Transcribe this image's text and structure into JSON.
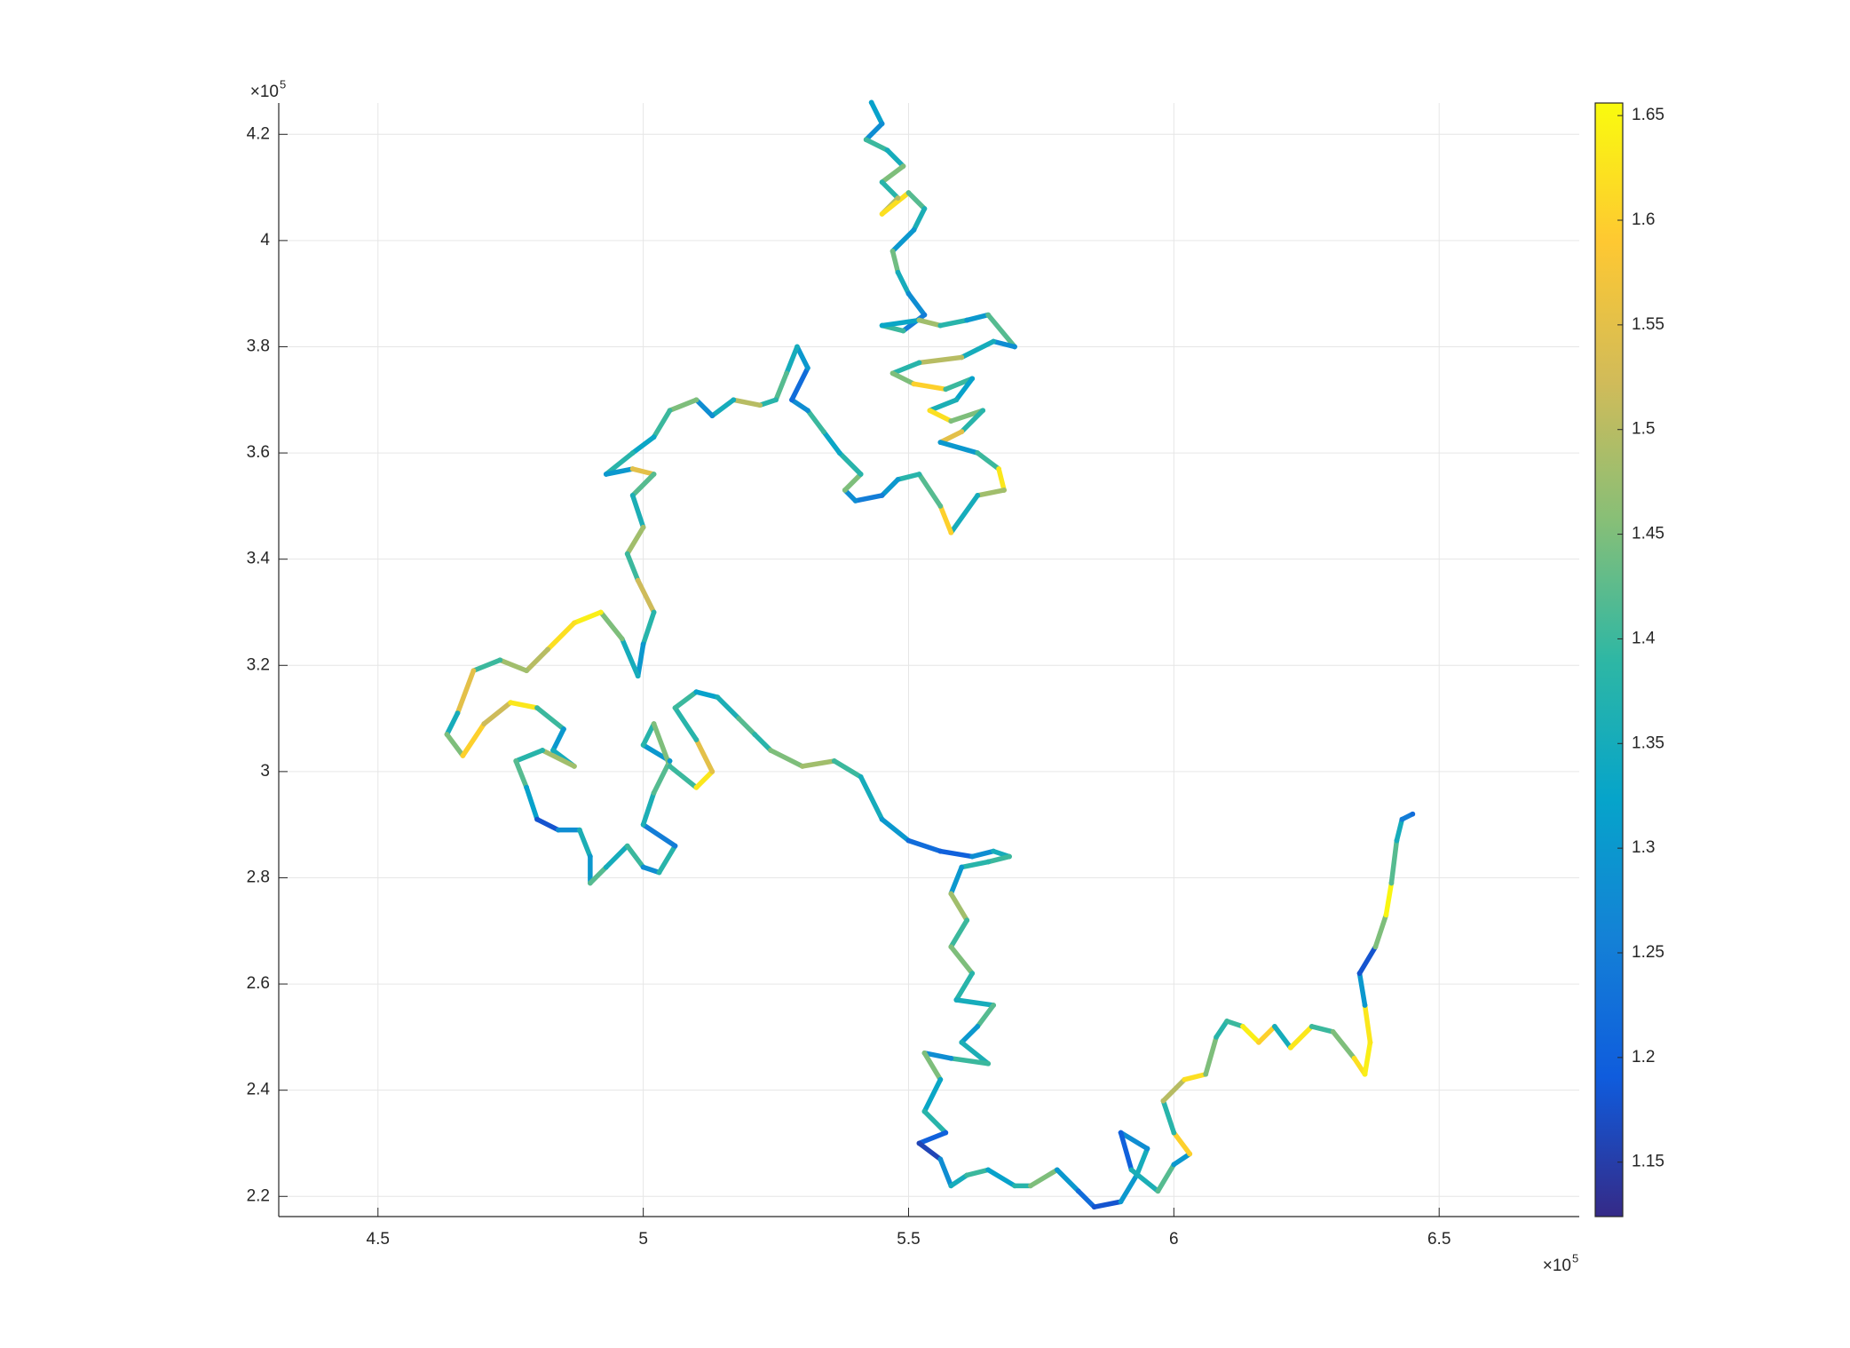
{
  "chart_data": {
    "type": "colored_line",
    "x": [
      543000,
      545000,
      542000,
      546000,
      549000,
      545000,
      548000,
      545000,
      550000,
      553000,
      551000,
      547000,
      548000,
      550000,
      553000,
      549000,
      545000,
      552000,
      556000,
      561000,
      565000,
      570000,
      566000,
      560000,
      552000,
      547000,
      551000,
      557000,
      562000,
      559000,
      554000,
      558000,
      564000,
      560000,
      556000,
      563000,
      567000,
      568000,
      563000,
      558000,
      556000,
      552000,
      548000,
      545000,
      540000,
      538000,
      541000,
      537000,
      534000,
      531000,
      528000,
      531000,
      529000,
      527000,
      525000,
      522000,
      517000,
      513000,
      510000,
      505000,
      502000,
      498000,
      493000,
      498000,
      502000,
      498000,
      500000,
      497000,
      499000,
      502000,
      500000,
      499000,
      496000,
      492000,
      487000,
      482000,
      478000,
      473000,
      468000,
      465000,
      463000,
      466000,
      470000,
      475000,
      480000,
      485000,
      483000,
      487000,
      481000,
      476000,
      478000,
      480000,
      484000,
      488000,
      490000,
      490000,
      493000,
      497000,
      500000,
      503000,
      506000,
      500000,
      502000,
      505000,
      500000,
      502000,
      505000,
      510000,
      513000,
      510000,
      506000,
      510000,
      514000,
      518000,
      521000,
      524000,
      530000,
      536000,
      541000,
      545000,
      550000,
      556000,
      562000,
      566000,
      569000,
      565000,
      560000,
      558000,
      561000,
      558000,
      562000,
      559000,
      566000,
      563000,
      560000,
      565000,
      558000,
      553000,
      556000,
      553000,
      557000,
      552000,
      556000,
      558000,
      561000,
      565000,
      570000,
      573000,
      578000,
      582000,
      585000,
      590000,
      593000,
      595000,
      590000,
      592000,
      597000,
      600000,
      603000,
      600000,
      598000,
      602000,
      606000,
      608000,
      610000,
      613000,
      616000,
      619000,
      622000,
      626000,
      630000,
      634000,
      636000,
      637000,
      636000,
      635000,
      638000,
      640000,
      641000,
      642000,
      643000,
      645000
    ],
    "y": [
      426000,
      422000,
      419000,
      417000,
      414000,
      411000,
      408000,
      405000,
      409000,
      406000,
      402000,
      398000,
      394000,
      390000,
      386000,
      383000,
      384000,
      385000,
      384000,
      385000,
      386000,
      380000,
      381000,
      378000,
      377000,
      375000,
      373000,
      372000,
      374000,
      370000,
      368000,
      366000,
      368000,
      364000,
      362000,
      360000,
      357000,
      353000,
      352000,
      345000,
      350000,
      356000,
      355000,
      352000,
      351000,
      353000,
      356000,
      360000,
      364000,
      368000,
      370000,
      376000,
      380000,
      375000,
      370000,
      369000,
      370000,
      367000,
      370000,
      368000,
      363000,
      360000,
      356000,
      357000,
      356000,
      352000,
      346000,
      341000,
      336000,
      330000,
      324000,
      318000,
      325000,
      330000,
      328000,
      323000,
      319000,
      321000,
      319000,
      311000,
      307000,
      303000,
      309000,
      313000,
      312000,
      308000,
      304000,
      301000,
      304000,
      302000,
      297000,
      291000,
      289000,
      289000,
      284000,
      279000,
      282000,
      286000,
      282000,
      281000,
      286000,
      290000,
      296000,
      302000,
      305000,
      309000,
      301000,
      297000,
      300000,
      306000,
      312000,
      315000,
      314000,
      310000,
      307000,
      304000,
      301000,
      302000,
      299000,
      291000,
      287000,
      285000,
      284000,
      285000,
      284000,
      283000,
      282000,
      277000,
      272000,
      267000,
      262000,
      257000,
      256000,
      252000,
      249000,
      245000,
      246000,
      247000,
      242000,
      236000,
      232000,
      230000,
      227000,
      222000,
      224000,
      225000,
      222000,
      222000,
      225000,
      221000,
      218000,
      219000,
      224000,
      229000,
      232000,
      225000,
      221000,
      226000,
      228000,
      232000,
      238000,
      242000,
      243000,
      250000,
      253000,
      252000,
      249000,
      252000,
      248000,
      252000,
      251000,
      246000,
      243000,
      249000,
      256000,
      262000,
      267000,
      273000,
      279000,
      287000,
      291000,
      292000
    ],
    "color_values": [
      1.32,
      1.28,
      1.4,
      1.35,
      1.45,
      1.38,
      1.5,
      1.62,
      1.42,
      1.36,
      1.3,
      1.44,
      1.35,
      1.28,
      1.25,
      1.4,
      1.33,
      1.48,
      1.38,
      1.3,
      1.42,
      1.28,
      1.35,
      1.5,
      1.38,
      1.45,
      1.6,
      1.4,
      1.32,
      1.36,
      1.62,
      1.45,
      1.38,
      1.55,
      1.3,
      1.4,
      1.63,
      1.48,
      1.35,
      1.6,
      1.42,
      1.38,
      1.3,
      1.25,
      1.28,
      1.45,
      1.38,
      1.33,
      1.4,
      1.28,
      1.22,
      1.3,
      1.35,
      1.42,
      1.38,
      1.5,
      1.35,
      1.28,
      1.45,
      1.4,
      1.33,
      1.38,
      1.3,
      1.55,
      1.42,
      1.36,
      1.48,
      1.4,
      1.52,
      1.38,
      1.3,
      1.35,
      1.45,
      1.64,
      1.62,
      1.5,
      1.48,
      1.4,
      1.55,
      1.35,
      1.45,
      1.6,
      1.52,
      1.63,
      1.4,
      1.3,
      1.35,
      1.48,
      1.38,
      1.42,
      1.32,
      1.18,
      1.28,
      1.36,
      1.3,
      1.42,
      1.35,
      1.4,
      1.28,
      1.38,
      1.25,
      1.36,
      1.42,
      1.3,
      1.38,
      1.45,
      1.4,
      1.63,
      1.55,
      1.38,
      1.4,
      1.32,
      1.36,
      1.42,
      1.38,
      1.45,
      1.48,
      1.4,
      1.35,
      1.3,
      1.22,
      1.2,
      1.28,
      1.35,
      1.4,
      1.38,
      1.3,
      1.48,
      1.4,
      1.45,
      1.38,
      1.35,
      1.42,
      1.3,
      1.36,
      1.4,
      1.28,
      1.45,
      1.33,
      1.38,
      1.2,
      1.16,
      1.28,
      1.35,
      1.4,
      1.32,
      1.38,
      1.45,
      1.3,
      1.22,
      1.18,
      1.3,
      1.35,
      1.28,
      1.2,
      1.36,
      1.42,
      1.3,
      1.6,
      1.38,
      1.5,
      1.62,
      1.45,
      1.38,
      1.4,
      1.64,
      1.6,
      1.35,
      1.63,
      1.4,
      1.45,
      1.62,
      1.64,
      1.63,
      1.3,
      1.18,
      1.45,
      1.65,
      1.42,
      1.35,
      1.25,
      1.22
    ],
    "xlim": [
      431300,
      676400
    ],
    "ylim": [
      216200,
      425900
    ],
    "xticks": [
      {
        "value": 450000,
        "label": "4.5"
      },
      {
        "value": 500000,
        "label": "5"
      },
      {
        "value": 550000,
        "label": "5.5"
      },
      {
        "value": 600000,
        "label": "6"
      },
      {
        "value": 650000,
        "label": "6.5"
      }
    ],
    "yticks": [
      {
        "value": 220000,
        "label": "2.2"
      },
      {
        "value": 240000,
        "label": "2.4"
      },
      {
        "value": 260000,
        "label": "2.6"
      },
      {
        "value": 280000,
        "label": "2.8"
      },
      {
        "value": 300000,
        "label": "3"
      },
      {
        "value": 320000,
        "label": "3.2"
      },
      {
        "value": 340000,
        "label": "3.4"
      },
      {
        "value": 360000,
        "label": "3.6"
      },
      {
        "value": 380000,
        "label": "3.8"
      },
      {
        "value": 400000,
        "label": "4"
      },
      {
        "value": 420000,
        "label": "4.2"
      }
    ],
    "x_multiplier": {
      "base": "×10",
      "exponent": "5"
    },
    "y_multiplier": {
      "base": "×10",
      "exponent": "5"
    },
    "clim": [
      1.124,
      1.656
    ],
    "cticks": [
      1.15,
      1.2,
      1.25,
      1.3,
      1.35,
      1.4,
      1.45,
      1.5,
      1.55,
      1.6,
      1.65
    ],
    "colormap": [
      "#352a87",
      "#0f5cdd",
      "#1481d6",
      "#06a4ca",
      "#2eb7a4",
      "#87bf77",
      "#d1bb59",
      "#fec832",
      "#f9fb0e"
    ],
    "grid": true
  }
}
